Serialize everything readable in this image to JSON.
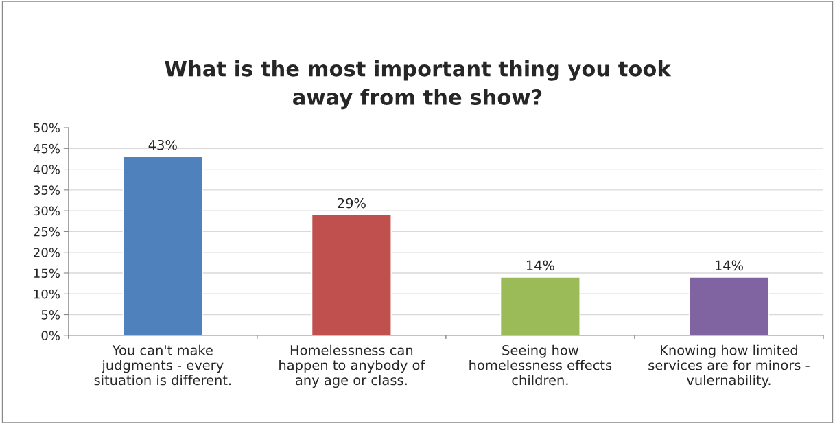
{
  "chart_data": {
    "type": "bar",
    "title": "What is the most important thing you took\naway from the show?",
    "categories": [
      "You can't make\njudgments - every\nsituation is different.",
      "Homelessness can\nhappen to anybody of\nany age or class.",
      "Seeing how\nhomelessness effects\nchildren.",
      "Knowing how limited\nservices are for minors -\nvulernability."
    ],
    "values": [
      43,
      29,
      14,
      14
    ],
    "colors": [
      "#4f81bd",
      "#c0504d",
      "#9bbb59",
      "#8064a2"
    ],
    "value_labels": [
      "43%",
      "29%",
      "14%",
      "14%"
    ],
    "ylim": [
      0,
      50
    ],
    "yticks": [
      {
        "value": 0,
        "label": "0%"
      },
      {
        "value": 5,
        "label": "5%"
      },
      {
        "value": 10,
        "label": "10%"
      },
      {
        "value": 15,
        "label": "15%"
      },
      {
        "value": 20,
        "label": "20%"
      },
      {
        "value": 25,
        "label": "25%"
      },
      {
        "value": 30,
        "label": "30%"
      },
      {
        "value": 35,
        "label": "35%"
      },
      {
        "value": 40,
        "label": "40%"
      },
      {
        "value": 45,
        "label": "45%"
      },
      {
        "value": 50,
        "label": "50%"
      }
    ],
    "grid": "y",
    "legend": false
  }
}
